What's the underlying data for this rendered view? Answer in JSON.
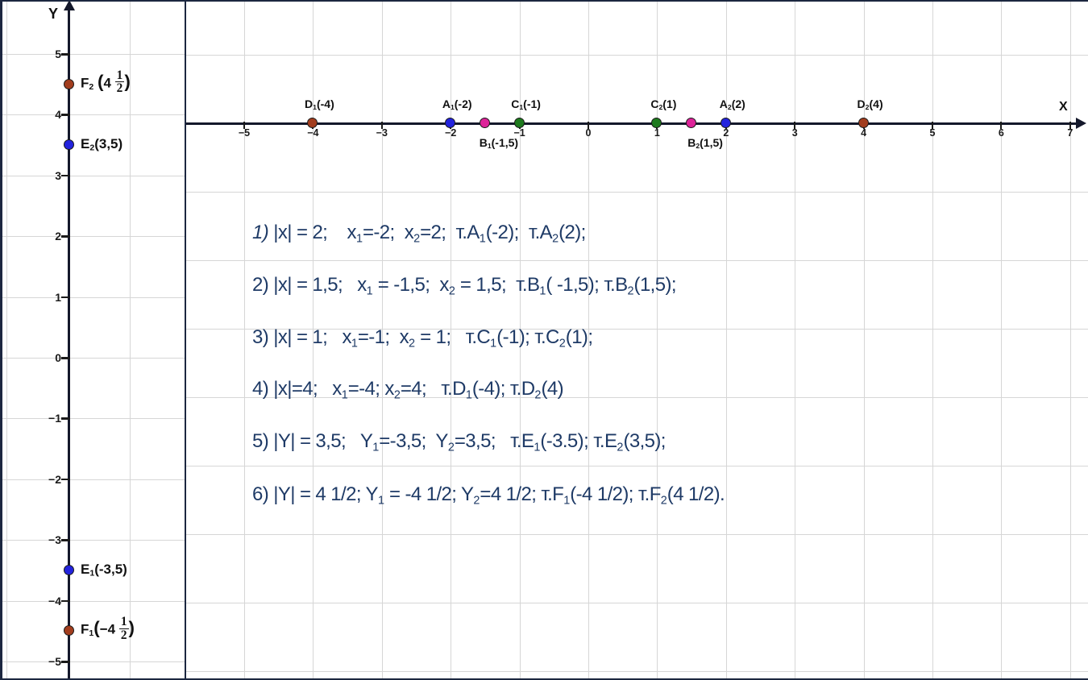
{
  "colors": {
    "brown": "#a23d1e",
    "blue": "#2323dd",
    "magenta": "#dd2399",
    "green": "#1e7a1e",
    "text": "#1e3a66",
    "grid": "#d6d6d6",
    "axis": "#14182b",
    "frame": "#1c2740"
  },
  "y_axis": {
    "label": "Y",
    "ticks": [
      {
        "value": 5,
        "label": "5"
      },
      {
        "value": 4,
        "label": "4"
      },
      {
        "value": 3,
        "label": "3"
      },
      {
        "value": 2,
        "label": "2"
      },
      {
        "value": 1,
        "label": "1"
      },
      {
        "value": 0,
        "label": "0"
      },
      {
        "value": -1,
        "label": "−1"
      },
      {
        "value": -2,
        "label": "−2"
      },
      {
        "value": -3,
        "label": "−3"
      },
      {
        "value": -4,
        "label": "−4"
      },
      {
        "value": -5,
        "label": "−5"
      }
    ],
    "points": [
      {
        "id": "F2",
        "value": 4.5,
        "color": "brown",
        "label": [
          {
            "t": "F"
          },
          {
            "t": "2",
            "s": "sub"
          },
          {
            "t": " "
          },
          {
            "t": "(",
            "s": "big"
          },
          {
            "t": "4 "
          },
          {
            "s": "frac",
            "n": "1",
            "d": "2"
          },
          {
            "t": ")",
            "s": "big"
          }
        ]
      },
      {
        "id": "E2",
        "value": 3.5,
        "color": "blue",
        "label": [
          {
            "t": "E"
          },
          {
            "t": "2",
            "s": "sub"
          },
          {
            "t": "(3,5)"
          }
        ]
      },
      {
        "id": "E1",
        "value": -3.5,
        "color": "blue",
        "label": [
          {
            "t": "E"
          },
          {
            "t": "1",
            "s": "sub"
          },
          {
            "t": "(-3,5)"
          }
        ]
      },
      {
        "id": "F1",
        "value": -4.5,
        "color": "brown",
        "label": [
          {
            "t": "F"
          },
          {
            "t": "1",
            "s": "sub"
          },
          {
            "t": "(",
            "s": "big"
          },
          {
            "t": "−4 "
          },
          {
            "s": "frac",
            "n": "1",
            "d": "2"
          },
          {
            "t": ")",
            "s": "big"
          }
        ]
      }
    ]
  },
  "x_axis": {
    "label": "X",
    "ticks": [
      {
        "value": -5,
        "label": "−5"
      },
      {
        "value": -4,
        "label": "−4"
      },
      {
        "value": -3,
        "label": "−3"
      },
      {
        "value": -2,
        "label": "−2"
      },
      {
        "value": -1,
        "label": "−1"
      },
      {
        "value": 0,
        "label": "0"
      },
      {
        "value": 1,
        "label": "1"
      },
      {
        "value": 2,
        "label": "2"
      },
      {
        "value": 3,
        "label": "3"
      },
      {
        "value": 4,
        "label": "4"
      },
      {
        "value": 5,
        "label": "5"
      },
      {
        "value": 6,
        "label": "6"
      },
      {
        "value": 7,
        "label": "7"
      }
    ],
    "points": [
      {
        "id": "D1",
        "value": -4,
        "color": "brown",
        "side": "above",
        "label": [
          {
            "t": "D"
          },
          {
            "t": "1",
            "s": "sub"
          },
          {
            "t": "(-4)"
          }
        ]
      },
      {
        "id": "A1",
        "value": -2,
        "color": "blue",
        "side": "above",
        "label": [
          {
            "t": "A"
          },
          {
            "t": "1",
            "s": "sub"
          },
          {
            "t": "(-2)"
          }
        ]
      },
      {
        "id": "B1",
        "value": -1.5,
        "color": "magenta",
        "side": "below",
        "label": [
          {
            "t": "B"
          },
          {
            "t": "1",
            "s": "sub"
          },
          {
            "t": "(-1,5)"
          }
        ]
      },
      {
        "id": "C1",
        "value": -1,
        "color": "green",
        "side": "above",
        "label": [
          {
            "t": "C"
          },
          {
            "t": "1",
            "s": "sub"
          },
          {
            "t": "(-1)"
          }
        ]
      },
      {
        "id": "C2",
        "value": 1,
        "color": "green",
        "side": "above",
        "label": [
          {
            "t": "C"
          },
          {
            "t": "2",
            "s": "sub"
          },
          {
            "t": "(1)"
          }
        ]
      },
      {
        "id": "B2",
        "value": 1.5,
        "color": "magenta",
        "side": "below",
        "label": [
          {
            "t": "B"
          },
          {
            "t": "2",
            "s": "sub"
          },
          {
            "t": "(1,5)"
          }
        ]
      },
      {
        "id": "A2",
        "value": 2,
        "color": "blue",
        "side": "above",
        "label": [
          {
            "t": "A"
          },
          {
            "t": "2",
            "s": "sub"
          },
          {
            "t": "(2)"
          }
        ]
      },
      {
        "id": "D2",
        "value": 4,
        "color": "brown",
        "side": "above",
        "label": [
          {
            "t": "D"
          },
          {
            "t": "2",
            "s": "sub"
          },
          {
            "t": "(4)"
          }
        ]
      }
    ]
  },
  "solutions": [
    {
      "tokens": [
        {
          "t": "1) ",
          "s": "it"
        },
        {
          "t": "|x| = 2;    x"
        },
        {
          "t": "1",
          "s": "sub"
        },
        {
          "t": "=-2;  x"
        },
        {
          "t": "2",
          "s": "sub"
        },
        {
          "t": "=2;  т.A"
        },
        {
          "t": "1",
          "s": "sub"
        },
        {
          "t": "(-2);  т.A"
        },
        {
          "t": "2",
          "s": "sub"
        },
        {
          "t": "(2);"
        }
      ]
    },
    {
      "tokens": [
        {
          "t": "2) |x| = 1,5;   x"
        },
        {
          "t": "1",
          "s": "sub"
        },
        {
          "t": " = -1,5;  x"
        },
        {
          "t": "2",
          "s": "sub"
        },
        {
          "t": " = 1,5;  т.B"
        },
        {
          "t": "1",
          "s": "sub"
        },
        {
          "t": "( -1,5); т.B"
        },
        {
          "t": "2",
          "s": "sub"
        },
        {
          "t": "(1,5);"
        }
      ]
    },
    {
      "tokens": [
        {
          "t": "3) |x| = 1;   x"
        },
        {
          "t": "1",
          "s": "sub"
        },
        {
          "t": "=-1;  x"
        },
        {
          "t": "2",
          "s": "sub"
        },
        {
          "t": " = 1;   т.C"
        },
        {
          "t": "1",
          "s": "sub"
        },
        {
          "t": "(-1); т.C"
        },
        {
          "t": "2",
          "s": "sub"
        },
        {
          "t": "(1);"
        }
      ]
    },
    {
      "tokens": [
        {
          "t": "4) |x|=4;   x"
        },
        {
          "t": "1",
          "s": "sub"
        },
        {
          "t": "=-4; x"
        },
        {
          "t": "2",
          "s": "sub"
        },
        {
          "t": "=4;   т.D"
        },
        {
          "t": "1",
          "s": "sub"
        },
        {
          "t": "(-4); т.D"
        },
        {
          "t": "2",
          "s": "sub"
        },
        {
          "t": "(4)"
        }
      ]
    },
    {
      "tokens": [
        {
          "t": "5) |Y| = 3,5;   Y"
        },
        {
          "t": "1",
          "s": "sub"
        },
        {
          "t": "=-3,5;  Y"
        },
        {
          "t": "2",
          "s": "sub"
        },
        {
          "t": "=3,5;   т.E"
        },
        {
          "t": "1",
          "s": "sub"
        },
        {
          "t": "(-3.5); т.E"
        },
        {
          "t": "2",
          "s": "sub"
        },
        {
          "t": "(3,5);"
        }
      ]
    },
    {
      "tokens": [
        {
          "t": "6) |Y| = 4 1/2; Y"
        },
        {
          "t": "1",
          "s": "sub"
        },
        {
          "t": " = -4 1/2; Y"
        },
        {
          "t": "2",
          "s": "sub"
        },
        {
          "t": "=4 1/2; т.F"
        },
        {
          "t": "1",
          "s": "sub"
        },
        {
          "t": "(-4 1/2); т.F"
        },
        {
          "t": "2",
          "s": "sub"
        },
        {
          "t": "(4 1/2)."
        }
      ]
    }
  ]
}
